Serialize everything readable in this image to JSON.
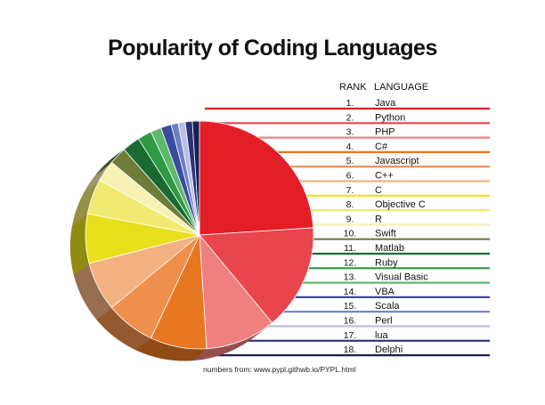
{
  "chart_data": {
    "type": "pie",
    "title": "Popularity of Coding Languages",
    "legend_headers": {
      "rank": "RANK",
      "language": "LANGUAGE"
    },
    "legend_placement": "right",
    "source_note": "numbers from: www.pypl.githwb.io/PYPL.html",
    "slices": [
      {
        "rank": "1.",
        "label": "Java",
        "value": 24.0,
        "color": "#e31e26"
      },
      {
        "rank": "2.",
        "label": "Python",
        "value": 15.0,
        "color": "#e8454d"
      },
      {
        "rank": "3.",
        "label": "PHP",
        "value": 10.0,
        "color": "#f08080"
      },
      {
        "rank": "4.",
        "label": "C#",
        "value": 8.0,
        "color": "#e87722"
      },
      {
        "rank": "5.",
        "label": "Javascript",
        "value": 7.0,
        "color": "#ee8f4c"
      },
      {
        "rank": "6.",
        "label": "C++",
        "value": 7.0,
        "color": "#f3b181"
      },
      {
        "rank": "7.",
        "label": "C",
        "value": 7.0,
        "color": "#e8e01c"
      },
      {
        "rank": "8.",
        "label": "Objective C",
        "value": 5.0,
        "color": "#f0ea70"
      },
      {
        "rank": "9.",
        "label": "R",
        "value": 3.0,
        "color": "#f6f2b4"
      },
      {
        "rank": "10.",
        "label": "Swift",
        "value": 2.5,
        "color": "#6e7d3a"
      },
      {
        "rank": "11.",
        "label": "Matlab",
        "value": 2.5,
        "color": "#1a6b32"
      },
      {
        "rank": "12.",
        "label": "Ruby",
        "value": 2.0,
        "color": "#2e9a45"
      },
      {
        "rank": "13.",
        "label": "Visual Basic",
        "value": 1.5,
        "color": "#5fb96a"
      },
      {
        "rank": "14.",
        "label": "VBA",
        "value": 1.5,
        "color": "#3a4b9e"
      },
      {
        "rank": "15.",
        "label": "Scala",
        "value": 1.0,
        "color": "#6e7ec4"
      },
      {
        "rank": "16.",
        "label": "Perl",
        "value": 1.0,
        "color": "#b6c0e6"
      },
      {
        "rank": "17.",
        "label": "lua",
        "value": 1.0,
        "color": "#2b3278"
      },
      {
        "rank": "18.",
        "label": "Delphi",
        "value": 1.0,
        "color": "#1c1f52"
      }
    ]
  }
}
